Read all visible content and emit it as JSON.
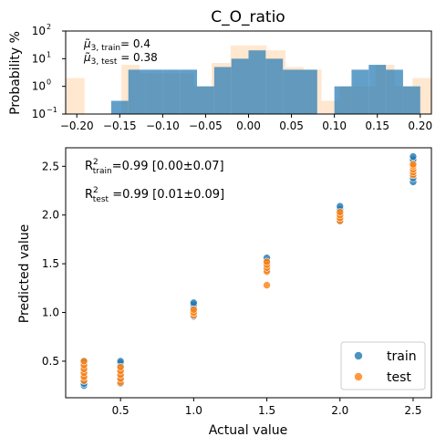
{
  "chart_data": [
    {
      "type": "histogram",
      "title": "C_O_ratio",
      "ylabel": "Probability %",
      "xlabel": "",
      "yscale": "log",
      "xlim": [
        -0.213,
        0.213
      ],
      "ylim": [
        0.1,
        100
      ],
      "xticks": [
        "−0.20",
        "−0.15",
        "−0.10",
        "−0.05",
        "0.00",
        "0.05",
        "0.10",
        "0.15",
        "0.20"
      ],
      "xtick_values": [
        -0.2,
        -0.15,
        -0.1,
        -0.05,
        0.0,
        0.05,
        0.1,
        0.15,
        0.2
      ],
      "yticks": [
        "10",
        "10",
        "10",
        "10"
      ],
      "ytick_exponents": [
        "−1",
        "0",
        "1",
        "2"
      ],
      "ytick_values": [
        0.1,
        1,
        10,
        100
      ],
      "annotation_train_label": "μ̃",
      "annotation_train_sub": "3, train",
      "annotation_train_value": "= 0.4",
      "annotation_test_label": "μ̃",
      "annotation_test_sub": "3, test",
      "annotation_test_value": " = 0.38",
      "series": [
        {
          "name": "test",
          "color": "#ffbb78",
          "bins": [
            [
              -0.213,
              -0.191,
              2.0
            ],
            [
              -0.191,
              -0.17,
              0.02
            ],
            [
              -0.17,
              -0.148,
              0.02
            ],
            [
              -0.148,
              -0.127,
              6.0
            ],
            [
              -0.127,
              -0.106,
              3.0
            ],
            [
              -0.106,
              -0.085,
              3.0
            ],
            [
              -0.085,
              -0.064,
              3.0
            ],
            [
              -0.064,
              -0.043,
              1.0
            ],
            [
              -0.043,
              -0.021,
              7.0
            ],
            [
              -0.021,
              0.0,
              30.0
            ],
            [
              0.0,
              0.021,
              30.0
            ],
            [
              0.021,
              0.043,
              20.0
            ],
            [
              0.043,
              0.064,
              5.0
            ],
            [
              0.064,
              0.085,
              4.0
            ],
            [
              0.085,
              0.106,
              0.3
            ],
            [
              0.106,
              0.127,
              1.0
            ],
            [
              0.127,
              0.148,
              1.0
            ],
            [
              0.148,
              0.17,
              6.0
            ],
            [
              0.17,
              0.191,
              1.0
            ],
            [
              0.191,
              0.213,
              2.0
            ]
          ]
        },
        {
          "name": "train",
          "color": "#1f77b4",
          "bins": [
            [
              -0.16,
              -0.14,
              0.3
            ],
            [
              -0.14,
              -0.12,
              4.0
            ],
            [
              -0.12,
              -0.1,
              4.0
            ],
            [
              -0.1,
              -0.08,
              4.0
            ],
            [
              -0.08,
              -0.06,
              4.0
            ],
            [
              -0.06,
              -0.04,
              1.0
            ],
            [
              -0.04,
              -0.02,
              5.0
            ],
            [
              -0.02,
              0.0,
              10.0
            ],
            [
              0.0,
              0.02,
              20.0
            ],
            [
              0.02,
              0.04,
              10.0
            ],
            [
              0.04,
              0.06,
              4.0
            ],
            [
              0.06,
              0.08,
              4.0
            ],
            [
              0.08,
              0.1,
              0.02
            ],
            [
              0.1,
              0.12,
              1.0
            ],
            [
              0.12,
              0.14,
              4.0
            ],
            [
              0.14,
              0.16,
              6.0
            ],
            [
              0.16,
              0.18,
              4.0
            ],
            [
              0.18,
              0.2,
              1.0
            ]
          ]
        }
      ]
    },
    {
      "type": "scatter",
      "title": "",
      "xlabel": "Actual value",
      "ylabel": "Predicted value",
      "xlim": [
        0.125,
        2.625
      ],
      "ylim": [
        0.125,
        2.69
      ],
      "xticks": [
        "0.5",
        "1.0",
        "1.5",
        "2.0",
        "2.5"
      ],
      "xtick_values": [
        0.5,
        1.0,
        1.5,
        2.0,
        2.5
      ],
      "yticks": [
        "0.5",
        "1.0",
        "1.5",
        "2.0",
        "2.5"
      ],
      "ytick_values": [
        0.5,
        1.0,
        1.5,
        2.0,
        2.5
      ],
      "r2_train_label": "R",
      "r2_train_sup": "2",
      "r2_train_sub": "train",
      "r2_train_value": "=0.99 [0.00±0.07]",
      "r2_test_label": "R",
      "r2_test_sup": "2",
      "r2_test_sub": "test",
      "r2_test_value": " =0.99 [0.01±0.09]",
      "legend_position": "lower right",
      "series": [
        {
          "name": "train",
          "color": "#1f77b4",
          "points": [
            [
              0.25,
              0.25
            ],
            [
              0.25,
              0.27
            ],
            [
              0.25,
              0.3
            ],
            [
              0.25,
              0.33
            ],
            [
              0.25,
              0.36
            ],
            [
              0.25,
              0.4
            ],
            [
              0.25,
              0.44
            ],
            [
              0.25,
              0.48
            ],
            [
              0.25,
              0.5
            ],
            [
              0.5,
              0.27
            ],
            [
              0.5,
              0.3
            ],
            [
              0.5,
              0.33
            ],
            [
              0.5,
              0.37
            ],
            [
              0.5,
              0.41
            ],
            [
              0.5,
              0.45
            ],
            [
              0.5,
              0.48
            ],
            [
              0.5,
              0.5
            ],
            [
              1.0,
              0.96
            ],
            [
              1.0,
              0.99
            ],
            [
              1.0,
              1.02
            ],
            [
              1.0,
              1.05
            ],
            [
              1.0,
              1.08
            ],
            [
              1.0,
              1.1
            ],
            [
              1.5,
              1.44
            ],
            [
              1.5,
              1.47
            ],
            [
              1.5,
              1.5
            ],
            [
              1.5,
              1.53
            ],
            [
              1.5,
              1.56
            ],
            [
              2.0,
              1.94
            ],
            [
              2.0,
              1.97
            ],
            [
              2.0,
              2.0
            ],
            [
              2.0,
              2.03
            ],
            [
              2.0,
              2.06
            ],
            [
              2.0,
              2.09
            ],
            [
              2.5,
              2.34
            ],
            [
              2.5,
              2.38
            ],
            [
              2.5,
              2.42
            ],
            [
              2.5,
              2.46
            ],
            [
              2.5,
              2.5
            ],
            [
              2.5,
              2.54
            ],
            [
              2.5,
              2.57
            ],
            [
              2.5,
              2.6
            ]
          ]
        },
        {
          "name": "test",
          "color": "#ff7f0e",
          "points": [
            [
              0.25,
              0.3
            ],
            [
              0.25,
              0.34
            ],
            [
              0.25,
              0.38
            ],
            [
              0.25,
              0.42
            ],
            [
              0.25,
              0.46
            ],
            [
              0.25,
              0.5
            ],
            [
              0.5,
              0.28
            ],
            [
              0.5,
              0.32
            ],
            [
              0.5,
              0.36
            ],
            [
              0.5,
              0.4
            ],
            [
              0.5,
              0.44
            ],
            [
              1.0,
              0.97
            ],
            [
              1.0,
              1.0
            ],
            [
              1.0,
              1.03
            ],
            [
              1.5,
              1.28
            ],
            [
              1.5,
              1.42
            ],
            [
              1.5,
              1.46
            ],
            [
              1.5,
              1.49
            ],
            [
              1.5,
              1.52
            ],
            [
              2.0,
              1.94
            ],
            [
              2.0,
              1.97
            ],
            [
              2.0,
              2.0
            ],
            [
              2.0,
              2.03
            ],
            [
              2.5,
              2.41
            ],
            [
              2.5,
              2.44
            ],
            [
              2.5,
              2.47
            ],
            [
              2.5,
              2.5
            ],
            [
              2.5,
              2.52
            ]
          ]
        }
      ]
    }
  ]
}
